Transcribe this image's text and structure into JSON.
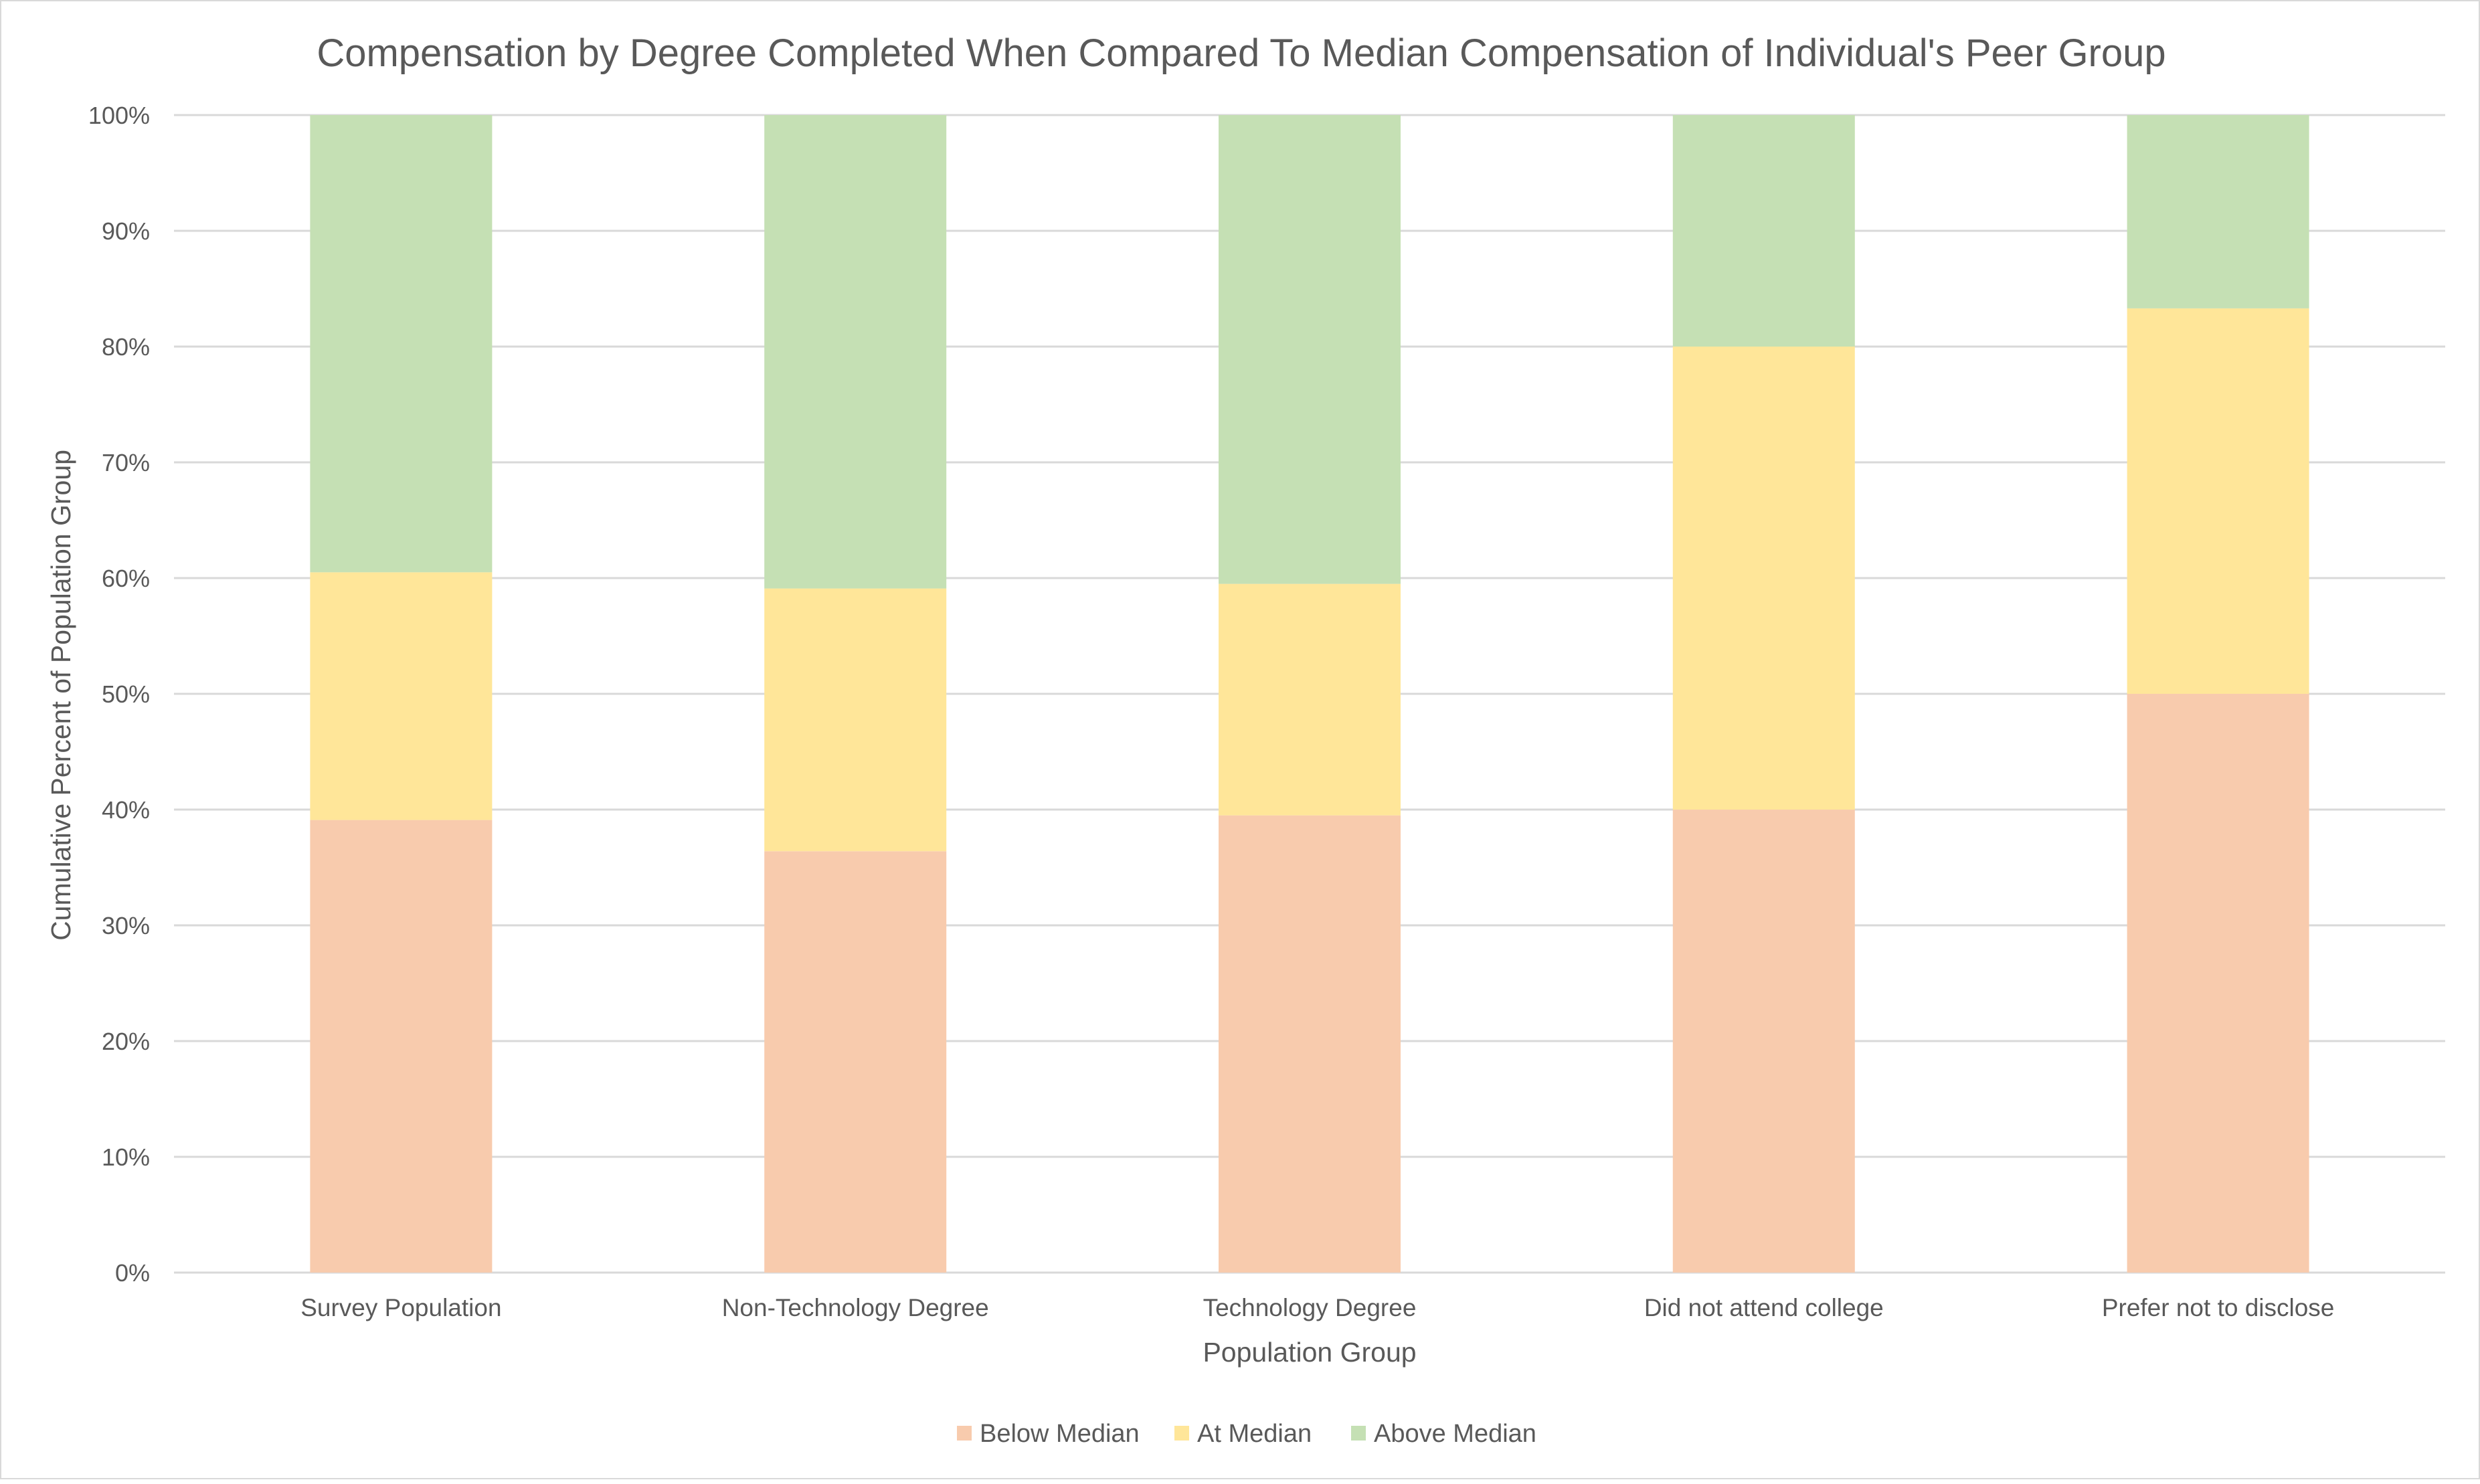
{
  "chart_data": {
    "type": "bar",
    "stacked": true,
    "title": "Compensation by Degree Completed When Compared To Median Compensation of Individual's Peer Group",
    "xlabel": "Population Group",
    "ylabel": "Cumulative Percent of Population Group",
    "ylim": [
      0,
      100
    ],
    "y_ticks": [
      "0%",
      "10%",
      "20%",
      "30%",
      "40%",
      "50%",
      "60%",
      "70%",
      "80%",
      "90%",
      "100%"
    ],
    "grid": true,
    "legend_position": "bottom",
    "categories": [
      "Survey Population",
      "Non-Technology Degree",
      "Technology Degree",
      "Did not attend college",
      "Prefer not to disclose"
    ],
    "series": [
      {
        "name": "Below Median",
        "color": "#f8cbad",
        "values": [
          39.1,
          36.4,
          39.5,
          40.0,
          50.0
        ]
      },
      {
        "name": "At Median",
        "color": "#ffe699",
        "values": [
          21.4,
          22.7,
          20.0,
          40.0,
          33.3
        ]
      },
      {
        "name": "Above Median",
        "color": "#c5e0b4",
        "values": [
          39.5,
          40.9,
          40.5,
          20.0,
          16.7
        ]
      }
    ]
  }
}
